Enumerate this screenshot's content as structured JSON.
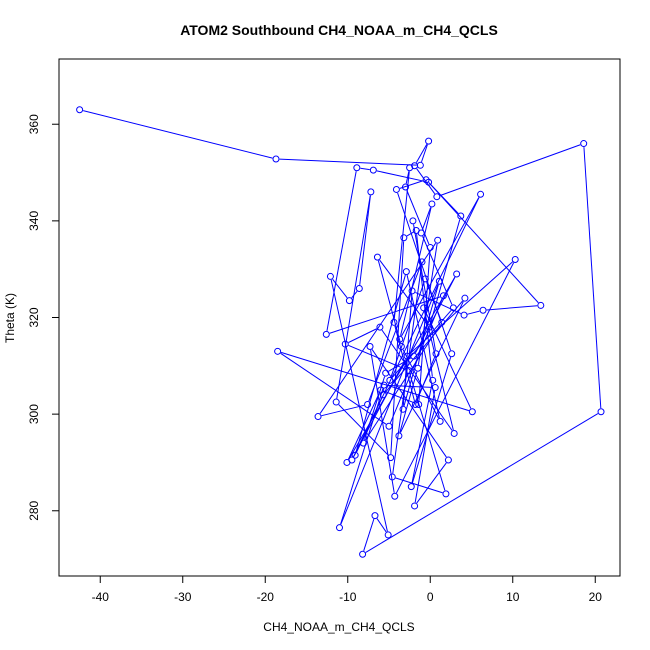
{
  "chart_data": {
    "type": "scatter",
    "title": "ATOM2 Southbound CH4_NOAA_m_CH4_QCLS",
    "xlabel": "CH4_NOAA_m_CH4_QCLS",
    "ylabel": "Theta (K)",
    "xlim": [
      -45,
      23
    ],
    "ylim": [
      266.5,
      373.5
    ],
    "xticks": [
      -40,
      -30,
      -20,
      -10,
      0,
      10,
      20
    ],
    "yticks": [
      280,
      300,
      320,
      340,
      360
    ],
    "grid": false,
    "legend": "none",
    "style": "connected points (lines and open circles)",
    "color": "#0000ff",
    "series": [
      {
        "x": [
          -42.5,
          -18.7,
          -1.2,
          -0.2,
          -1.9,
          0.8,
          18.6,
          20.7,
          -8.2,
          -6.7,
          -5.1,
          -12.1,
          -9.8,
          -8.6,
          -7.2,
          -11.4,
          -4.8,
          -3.2,
          -1.7,
          0.3,
          -2.3,
          2.6,
          -4.1,
          -0.5,
          3.7,
          -0.1,
          -6.4,
          -3.5,
          1.2,
          -2.9,
          -9.1,
          -5.7,
          4.2,
          -3.8,
          -1.5,
          0.9,
          -13.6,
          -7.6,
          -1.0,
          -4.6,
          1.9,
          -2.6,
          -10.3,
          -6.1,
          2.9,
          -0.8,
          5.1,
          -18.5,
          -5.0,
          1.6,
          -12.6,
          -8.9,
          -6.9,
          -0.2,
          13.4,
          6.4,
          4.1,
          -2.2,
          -3.3,
          1.1,
          -11.0,
          -5.6,
          0.6,
          -1.9,
          2.2,
          -7.3,
          -4.3,
          10.3,
          -2.8,
          -9.5,
          6.1,
          -3.7,
          0.2,
          -1.1,
          2.8,
          -4.9,
          -0.6,
          1.4,
          -8.1,
          -5.4,
          -2.0,
          3.2,
          -10.1,
          -6.0,
          -1.4,
          0.0,
          -3.0,
          -2.5,
          -4.4,
          -1.8,
          0.7,
          -2.1
        ],
        "y": [
          363.0,
          352.8,
          351.5,
          356.5,
          351.4,
          345.0,
          356.0,
          300.5,
          271.0,
          279.0,
          275.0,
          328.5,
          323.5,
          326.0,
          346.0,
          302.5,
          291.0,
          336.5,
          338.0,
          307.0,
          285.0,
          312.5,
          346.5,
          348.5,
          341.0,
          318.0,
          332.5,
          314.0,
          298.5,
          329.5,
          291.5,
          304.0,
          324.0,
          295.5,
          309.5,
          336.0,
          299.5,
          302.0,
          331.5,
          287.0,
          283.5,
          309.0,
          314.5,
          318.0,
          296.0,
          322.0,
          300.5,
          313.0,
          297.5,
          324.5,
          316.5,
          351.0,
          350.5,
          348.0,
          322.5,
          321.5,
          320.5,
          325.5,
          301.0,
          327.5,
          276.5,
          306.0,
          305.5,
          281.0,
          290.5,
          314.0,
          283.0,
          332.0,
          312.0,
          290.5,
          345.5,
          315.5,
          343.5,
          337.5,
          322.0,
          307.0,
          328.0,
          319.0,
          294.0,
          308.5,
          312.0,
          329.0,
          290.0,
          305.0,
          302.0,
          334.5,
          347.0,
          351.0,
          319.0,
          302.0,
          312.5,
          340.0
        ]
      }
    ]
  }
}
